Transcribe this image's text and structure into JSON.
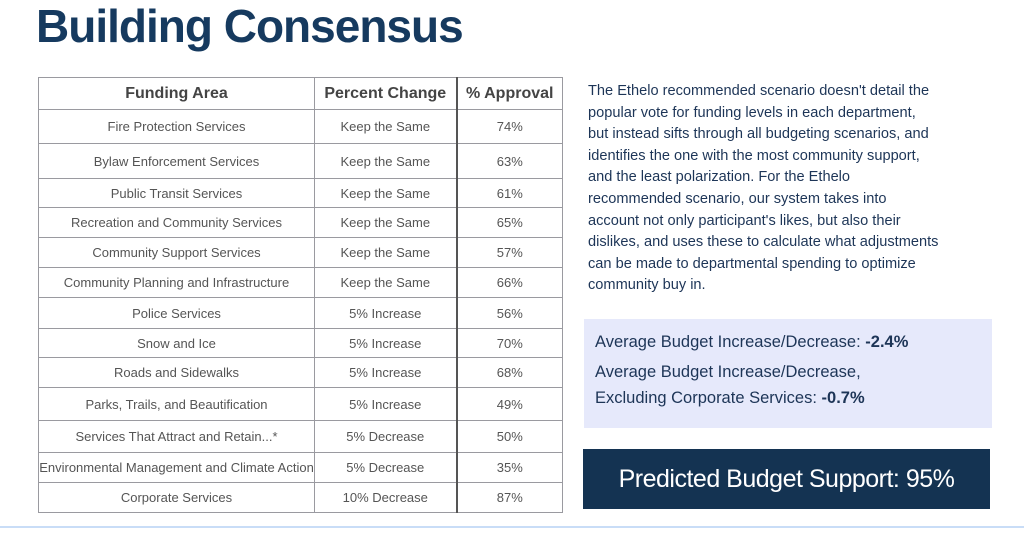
{
  "title": "Building Consensus",
  "table": {
    "headers": [
      "Funding Area",
      "Percent Change",
      "% Approval"
    ],
    "rows": [
      [
        "Fire Protection Services",
        "Keep the Same",
        "74%"
      ],
      [
        "Bylaw Enforcement Services",
        "Keep the Same",
        "63%"
      ],
      [
        "Public Transit Services",
        "Keep the Same",
        "61%"
      ],
      [
        "Recreation and Community Services",
        "Keep the Same",
        "65%"
      ],
      [
        "Community Support Services",
        "Keep the Same",
        "57%"
      ],
      [
        "Community Planning and Infrastructure",
        "Keep the Same",
        "66%"
      ],
      [
        "Police Services",
        "5% Increase",
        "56%"
      ],
      [
        "Snow and Ice",
        "5% Increase",
        "70%"
      ],
      [
        "Roads and Sidewalks",
        "5% Increase",
        "68%"
      ],
      [
        "Parks, Trails, and Beautification",
        "5% Increase",
        "49%"
      ],
      [
        "Services That Attract and Retain...*",
        "5% Decrease",
        "50%"
      ],
      [
        "Environmental Management and Climate Action",
        "5% Decrease",
        "35%"
      ],
      [
        "Corporate Services",
        "10% Decrease",
        "87%"
      ]
    ]
  },
  "description_lines": [
    "The Ethelo recommended scenario doesn't detail the",
    "popular vote for funding levels in each department,",
    "but instead sifts through all budgeting scenarios, and",
    "identifies the one with the most community support,",
    "and the least polarization. For the Ethelo",
    "recommended scenario, our system takes into",
    "account not only participant's likes, but also their",
    "dislikes, and uses these to calculate what adjustments",
    "can be made to departmental spending to optimize",
    "community buy in."
  ],
  "stats": {
    "avg_label": "Average Budget Increase/Decrease: ",
    "avg_value": "-2.4%",
    "excl_label_line1": "Average Budget Increase/Decrease,",
    "excl_label_line2": "Excluding Corporate Services: ",
    "excl_value": "-0.7%"
  },
  "support": "Predicted Budget Support: 95%"
}
